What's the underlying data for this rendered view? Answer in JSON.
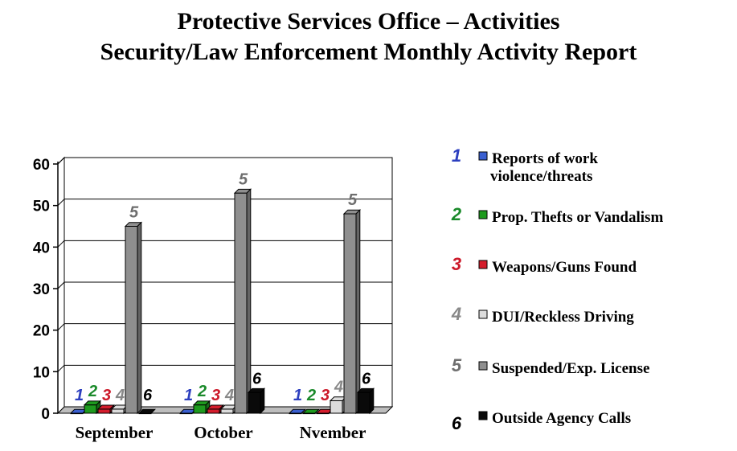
{
  "title": {
    "line1": "Protective Services Office – Activities",
    "line2": "Security/Law Enforcement Monthly Activity Report"
  },
  "chart_data": {
    "type": "bar",
    "categories": [
      "September",
      "October",
      "Nvember"
    ],
    "ylim": [
      0,
      60
    ],
    "yticks": [
      0,
      10,
      20,
      30,
      40,
      50,
      60
    ],
    "grid": true,
    "legend_position": "right",
    "series": [
      {
        "name": "Reports of work violence/threats",
        "legend_lines": [
          "Reports of work",
          "violence/threats"
        ],
        "label": "1",
        "color": "#3a5fd0",
        "label_color": "#2c3fbf",
        "values": [
          0,
          0,
          0
        ]
      },
      {
        "name": "Prop. Thefts or Vandalism",
        "legend_lines": [
          "Prop. Thefts or Vandalism"
        ],
        "label": "2",
        "color": "#1e9a1e",
        "label_color": "#1a8a2a",
        "values": [
          2,
          2,
          0
        ]
      },
      {
        "name": "Weapons/Guns Found",
        "legend_lines": [
          "Weapons/Guns Found"
        ],
        "label": "3",
        "color": "#d41c2c",
        "label_color": "#cc1a2a",
        "values": [
          1,
          1,
          0
        ]
      },
      {
        "name": "DUI/Reckless Driving",
        "legend_lines": [
          "DUI/Reckless Driving"
        ],
        "label": "4",
        "color": "#dcdcdc",
        "label_color": "#888888",
        "values": [
          1,
          1,
          3
        ]
      },
      {
        "name": "Suspended/Exp. License",
        "legend_lines": [
          "Suspended/Exp. License"
        ],
        "label": "5",
        "color": "#8f8f8f",
        "label_color": "#6e6e6e",
        "values": [
          45,
          53,
          48
        ]
      },
      {
        "name": "Outside Agency Calls",
        "legend_lines": [
          "Outside Agency Calls"
        ],
        "label": "6",
        "color": "#0a0a0a",
        "label_color": "#000000",
        "values": [
          0,
          5,
          5
        ]
      }
    ]
  }
}
